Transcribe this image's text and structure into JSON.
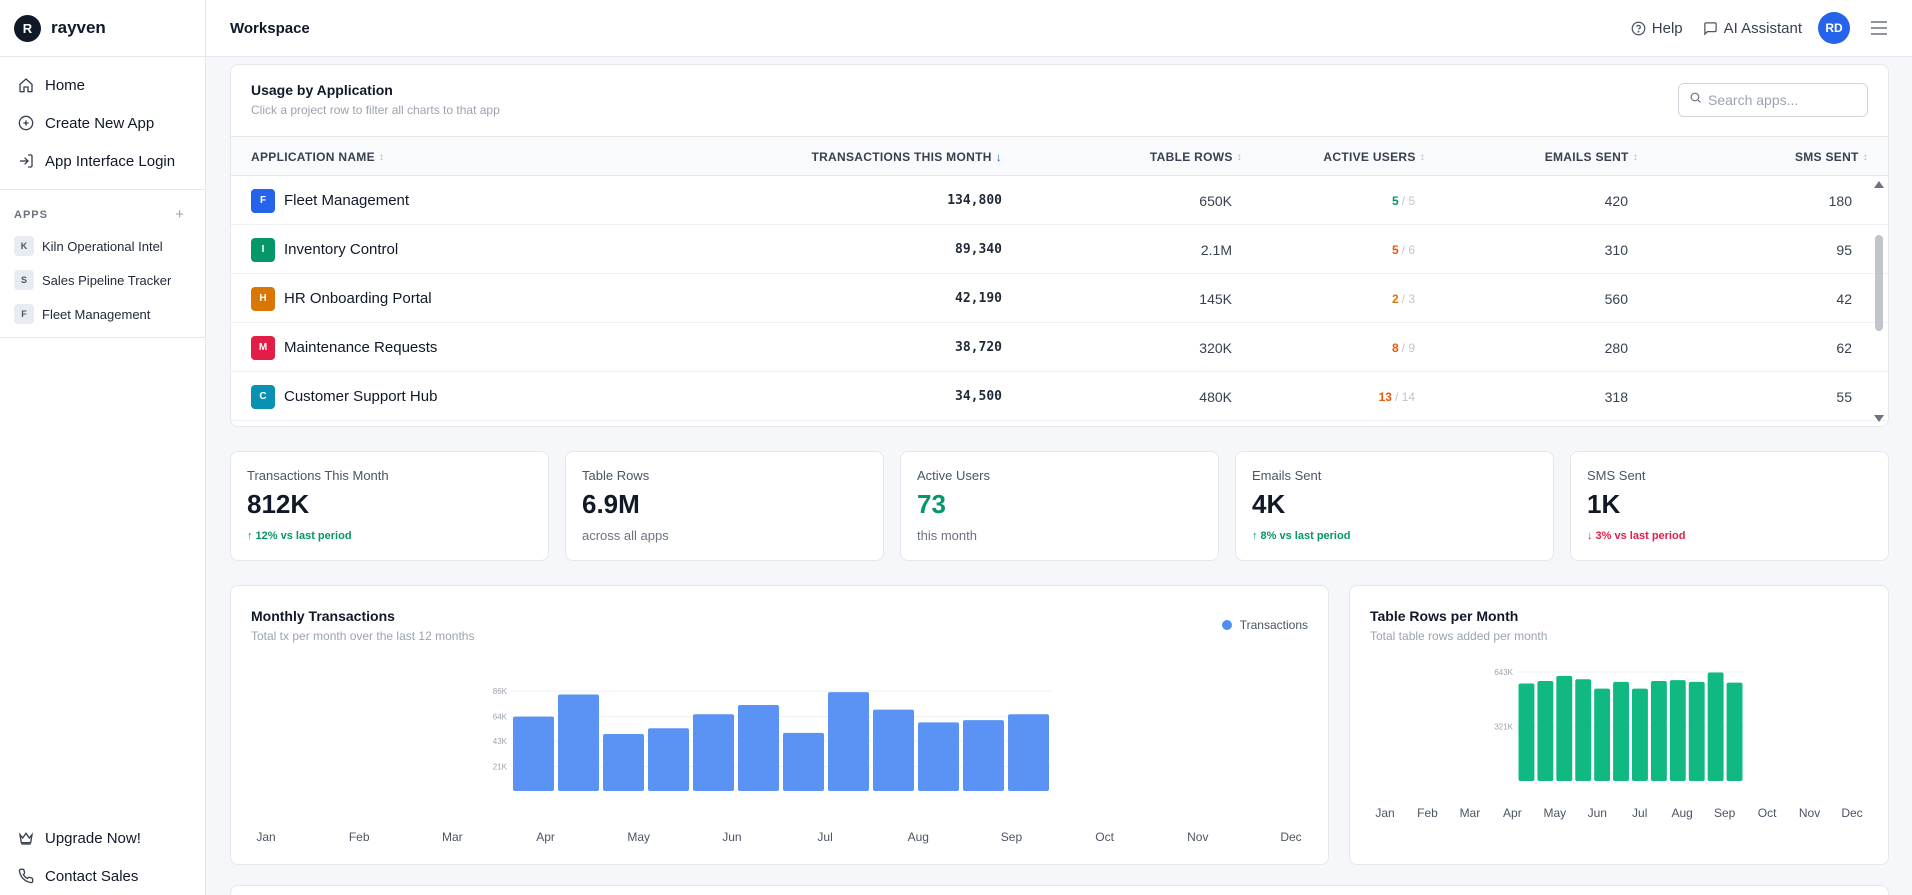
{
  "brand": {
    "logo_letter": "R",
    "name": "rayven"
  },
  "nav": [
    {
      "label": "Home",
      "icon": "home-icon"
    },
    {
      "label": "Create New App",
      "icon": "plus-circle-icon"
    },
    {
      "label": "App Interface Login",
      "icon": "login-icon"
    }
  ],
  "apps_section": {
    "title": "APPS",
    "add_symbol": "+",
    "items": [
      {
        "letter": "K",
        "label": "Kiln Operational Intel"
      },
      {
        "letter": "S",
        "label": "Sales Pipeline Tracker"
      },
      {
        "letter": "F",
        "label": "Fleet Management"
      }
    ]
  },
  "sidebar_bottom": [
    {
      "label": "Upgrade Now!",
      "icon": "crown-icon"
    },
    {
      "label": "Contact Sales",
      "icon": "phone-icon"
    }
  ],
  "header": {
    "title": "Workspace",
    "help_label": "Help",
    "assistant_label": "AI Assistant",
    "avatar_initials": "RD"
  },
  "usage": {
    "title": "Usage by Application",
    "subtitle": "Click a project row to filter all charts to that app",
    "search_placeholder": "Search apps...",
    "columns": {
      "name": "APPLICATION NAME",
      "transactions": "TRANSACTIONS THIS MONTH",
      "table_rows": "TABLE ROWS",
      "active_users": "ACTIVE USERS",
      "emails": "EMAILS SENT",
      "sms": "SMS SENT"
    },
    "rows": [
      {
        "letter": "F",
        "color": "#2563eb",
        "name": "Fleet Management",
        "transactions": "134,800",
        "table_rows": "650K",
        "users_active": "5",
        "users_total": "/ 5",
        "users_color": "#059669",
        "emails": "420",
        "sms": "180"
      },
      {
        "letter": "I",
        "color": "#059669",
        "name": "Inventory Control",
        "transactions": "89,340",
        "table_rows": "2.1M",
        "users_active": "5",
        "users_total": "/ 6",
        "users_color": "#ea580c",
        "emails": "310",
        "sms": "95"
      },
      {
        "letter": "H",
        "color": "#d97706",
        "name": "HR Onboarding Portal",
        "transactions": "42,190",
        "table_rows": "145K",
        "users_active": "2",
        "users_total": "/ 3",
        "users_color": "#d97706",
        "emails": "560",
        "sms": "42"
      },
      {
        "letter": "M",
        "color": "#e11d48",
        "name": "Maintenance Requests",
        "transactions": "38,720",
        "table_rows": "320K",
        "users_active": "8",
        "users_total": "/ 9",
        "users_color": "#ea580c",
        "emails": "280",
        "sms": "62"
      },
      {
        "letter": "C",
        "color": "#0891b2",
        "name": "Customer Support Hub",
        "transactions": "34,500",
        "table_rows": "480K",
        "users_active": "13",
        "users_total": "/ 14",
        "users_color": "#ea580c",
        "emails": "318",
        "sms": "55"
      }
    ]
  },
  "kpis": [
    {
      "label": "Transactions This Month",
      "value": "812K",
      "trend": "↑ 12% vs last period",
      "trend_dir": "up"
    },
    {
      "label": "Table Rows",
      "value": "6.9M",
      "note": "across all apps"
    },
    {
      "label": "Active Users",
      "value": "73",
      "note": "this month",
      "value_color": "green"
    },
    {
      "label": "Emails Sent",
      "value": "4K",
      "trend": "↑ 8% vs last period",
      "trend_dir": "up"
    },
    {
      "label": "SMS Sent",
      "value": "1K",
      "trend": "↓ 3% vs last period",
      "trend_dir": "down"
    }
  ],
  "chart_data": [
    {
      "type": "bar",
      "title": "Monthly Transactions",
      "subtitle": "Total tx per month over the last 12 months",
      "color": "#5b93f5",
      "series": [
        {
          "name": "Transactions",
          "values": [
            64000,
            83000,
            49000,
            54000,
            66000,
            74000,
            50000,
            85000,
            70000,
            59000,
            61000,
            66000
          ]
        }
      ],
      "y_ticks": [
        "86K",
        "64K",
        "43K",
        "21K"
      ],
      "y_tick_values": [
        86000,
        64000,
        43000,
        21000
      ],
      "ylim": [
        0,
        86000
      ],
      "x_labels": [
        "Jan",
        "Feb",
        "Mar",
        "Apr",
        "May",
        "Jun",
        "Jul",
        "Aug",
        "Sep",
        "Oct",
        "Nov",
        "Dec"
      ],
      "legend": "top-right"
    },
    {
      "type": "bar",
      "title": "Table Rows per Month",
      "subtitle": "Total table rows added per month",
      "color": "#10b981",
      "values": [
        575000,
        590000,
        620000,
        600000,
        545000,
        585000,
        545000,
        590000,
        595000,
        585000,
        640000,
        580000
      ],
      "y_ticks": [
        "643K",
        "321K"
      ],
      "y_tick_values": [
        643000,
        321000
      ],
      "ylim": [
        0,
        643000
      ],
      "x_labels": [
        "Jan",
        "Feb",
        "Mar",
        "Apr",
        "May",
        "Jun",
        "Jul",
        "Aug",
        "Sep",
        "Oct",
        "Nov",
        "Dec"
      ]
    }
  ]
}
